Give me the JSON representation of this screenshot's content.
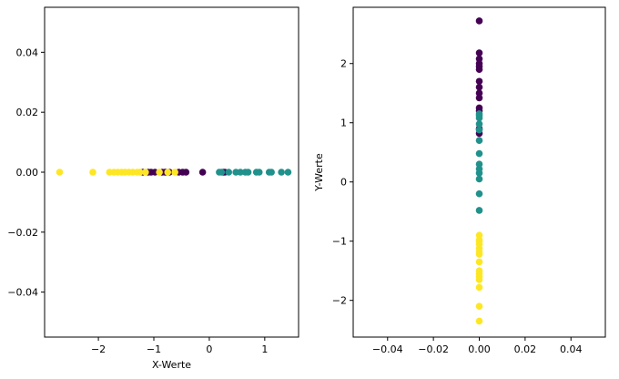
{
  "chart_data": [
    {
      "type": "scatter",
      "title": "",
      "xlabel": "X-Werte",
      "ylabel": "",
      "xlim": [
        -2.97,
        1.61
      ],
      "ylim": [
        -0.055,
        0.055
      ],
      "xticks": [
        -2,
        -1,
        0,
        1
      ],
      "xtick_labels": [
        "−2",
        "−1",
        "0",
        "1"
      ],
      "yticks": [
        -0.04,
        -0.02,
        0.0,
        0.02,
        0.04
      ],
      "ytick_labels": [
        "−0.04",
        "−0.02",
        "0.00",
        "0.02",
        "0.04"
      ],
      "grid": false,
      "series": [
        {
          "color": "#440154",
          "x": [
            -1.2,
            -1.1,
            -1.05,
            -0.98,
            -0.85,
            -0.8,
            -0.78,
            -0.72,
            -0.55,
            -0.48,
            -0.42,
            -0.12,
            0.25,
            0.28
          ],
          "y": [
            0,
            0,
            0,
            0,
            0,
            0,
            0,
            0,
            0,
            0,
            0,
            0,
            0,
            0
          ]
        },
        {
          "color": "#21918c",
          "x": [
            0.18,
            0.22,
            0.35,
            0.48,
            0.56,
            0.65,
            0.7,
            0.85,
            0.9,
            1.08,
            1.12,
            1.3,
            1.42
          ],
          "y": [
            0,
            0,
            0,
            0,
            0,
            0,
            0,
            0,
            0,
            0,
            0,
            0,
            0
          ]
        },
        {
          "color": "#fde725",
          "x": [
            -2.7,
            -2.1,
            -1.8,
            -1.72,
            -1.65,
            -1.58,
            -1.52,
            -1.45,
            -1.38,
            -1.3,
            -1.25,
            -1.15,
            -0.9,
            -0.75,
            -0.62
          ],
          "y": [
            0,
            0,
            0,
            0,
            0,
            0,
            0,
            0,
            0,
            0,
            0,
            0,
            0,
            0,
            0
          ]
        }
      ]
    },
    {
      "type": "scatter",
      "title": "",
      "xlabel": "",
      "ylabel": "Y-Werte",
      "xlim": [
        -0.055,
        0.055
      ],
      "ylim": [
        -2.62,
        2.95
      ],
      "xticks": [
        -0.04,
        -0.02,
        0.0,
        0.02,
        0.04
      ],
      "xtick_labels": [
        "−0.04",
        "−0.02",
        "0.00",
        "0.02",
        "0.04"
      ],
      "yticks": [
        -2,
        -1,
        0,
        1,
        2
      ],
      "ytick_labels": [
        "−2",
        "−1",
        "0",
        "1",
        "2"
      ],
      "grid": false,
      "series": [
        {
          "color": "#440154",
          "x": [
            0,
            0,
            0,
            0,
            0,
            0,
            0,
            0,
            0,
            0,
            0,
            0,
            0,
            0
          ],
          "y": [
            2.72,
            2.18,
            2.08,
            2.0,
            1.95,
            1.9,
            1.7,
            1.6,
            1.5,
            1.42,
            1.25,
            1.2,
            0.9,
            0.82
          ]
        },
        {
          "color": "#21918c",
          "x": [
            0,
            0,
            0,
            0,
            0,
            0,
            0,
            0,
            0,
            0,
            0,
            0,
            0
          ],
          "y": [
            1.15,
            1.08,
            0.98,
            0.88,
            0.7,
            0.48,
            0.3,
            0.22,
            0.15,
            0.05,
            -0.2,
            -0.48,
            1.12
          ]
        },
        {
          "color": "#fde725",
          "x": [
            0,
            0,
            0,
            0,
            0,
            0,
            0,
            0,
            0,
            0,
            0,
            0,
            0,
            0,
            0
          ],
          "y": [
            -0.9,
            -0.98,
            -1.05,
            -1.12,
            -1.18,
            -1.35,
            -1.5,
            -1.55,
            -1.6,
            -1.65,
            -1.78,
            -2.1,
            -2.35,
            -1.0,
            -1.22
          ]
        }
      ]
    }
  ]
}
